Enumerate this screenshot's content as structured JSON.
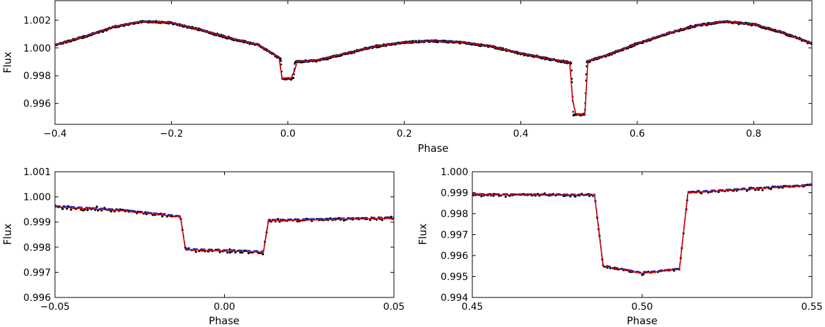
{
  "chart_data": [
    {
      "type": "scatter",
      "xlabel": "Phase",
      "ylabel": "Flux",
      "xlim": [
        -0.4,
        0.9
      ],
      "ylim": [
        0.9945,
        1.0034
      ],
      "xticks": [
        -0.4,
        -0.2,
        0.0,
        0.2,
        0.4,
        0.6,
        0.8
      ],
      "xtick_labels": [
        "−0.4",
        "−0.2",
        "0.0",
        "0.2",
        "0.4",
        "0.6",
        "0.8"
      ],
      "yticks": [
        0.996,
        0.998,
        1.0,
        1.002
      ],
      "ytick_labels": [
        "0.996",
        "0.998",
        "1.000",
        "1.002"
      ],
      "grid": false,
      "model_curve_points": [
        [
          -0.4,
          1.0002
        ],
        [
          -0.35,
          1.0008
        ],
        [
          -0.3,
          1.0015
        ],
        [
          -0.25,
          1.0019
        ],
        [
          -0.2,
          1.0018
        ],
        [
          -0.15,
          1.0013
        ],
        [
          -0.1,
          1.0007
        ],
        [
          -0.05,
          1.0002
        ],
        [
          -0.012,
          0.9992
        ],
        [
          -0.01,
          0.9978
        ],
        [
          0.01,
          0.9978
        ],
        [
          0.012,
          0.999
        ],
        [
          0.05,
          0.9991
        ],
        [
          0.1,
          0.9996
        ],
        [
          0.15,
          1.0001
        ],
        [
          0.2,
          1.0004
        ],
        [
          0.25,
          1.0005
        ],
        [
          0.3,
          1.0004
        ],
        [
          0.35,
          1.0001
        ],
        [
          0.4,
          0.9996
        ],
        [
          0.487,
          0.9989
        ],
        [
          0.49,
          0.9952
        ],
        [
          0.51,
          0.9952
        ],
        [
          0.513,
          0.999
        ],
        [
          0.55,
          0.9995
        ],
        [
          0.6,
          1.0003
        ],
        [
          0.65,
          1.001
        ],
        [
          0.7,
          1.0016
        ],
        [
          0.75,
          1.0019
        ],
        [
          0.8,
          1.0017
        ],
        [
          0.85,
          1.0011
        ],
        [
          0.9,
          1.0003
        ]
      ],
      "series": [
        {
          "style": "black dots"
        },
        {
          "style": "red solid line"
        },
        {
          "style": "blue dashed line"
        }
      ]
    },
    {
      "type": "scatter",
      "xlabel": "Phase",
      "ylabel": "Flux",
      "xlim": [
        -0.05,
        0.05
      ],
      "ylim": [
        0.996,
        1.001
      ],
      "xticks": [
        -0.05,
        0.0,
        0.05
      ],
      "xtick_labels": [
        "−0.05",
        "0.00",
        "0.05"
      ],
      "yticks": [
        0.996,
        0.997,
        0.998,
        0.999,
        1.0,
        1.001
      ],
      "ytick_labels": [
        "0.996",
        "0.997",
        "0.998",
        "0.999",
        "1.000",
        "1.001"
      ],
      "grid": false,
      "model_curve_points": [
        [
          -0.05,
          0.9996
        ],
        [
          -0.03,
          0.99945
        ],
        [
          -0.013,
          0.9992
        ],
        [
          -0.0115,
          0.9979
        ],
        [
          0.0,
          0.99785
        ],
        [
          0.0115,
          0.9978
        ],
        [
          0.013,
          0.99905
        ],
        [
          0.05,
          0.99915
        ]
      ],
      "series": [
        {
          "style": "black dots"
        },
        {
          "style": "red solid line"
        },
        {
          "style": "blue dashed line"
        }
      ]
    },
    {
      "type": "scatter",
      "xlabel": "Phase",
      "ylabel": "Flux",
      "xlim": [
        0.45,
        0.55
      ],
      "ylim": [
        0.994,
        1.0
      ],
      "xticks": [
        0.45,
        0.5,
        0.55
      ],
      "xtick_labels": [
        "0.45",
        "0.50",
        "0.55"
      ],
      "yticks": [
        0.994,
        0.995,
        0.996,
        0.997,
        0.998,
        0.999,
        1.0
      ],
      "ytick_labels": [
        "0.994",
        "0.995",
        "0.996",
        "0.997",
        "0.998",
        "0.999",
        "1.000"
      ],
      "grid": false,
      "model_curve_points": [
        [
          0.45,
          0.9989
        ],
        [
          0.486,
          0.99888
        ],
        [
          0.4885,
          0.9955
        ],
        [
          0.5,
          0.99515
        ],
        [
          0.511,
          0.99535
        ],
        [
          0.5135,
          0.999
        ],
        [
          0.55,
          0.99935
        ]
      ],
      "series": [
        {
          "style": "black dots"
        },
        {
          "style": "red solid line"
        },
        {
          "style": "blue dashed line"
        }
      ]
    }
  ]
}
